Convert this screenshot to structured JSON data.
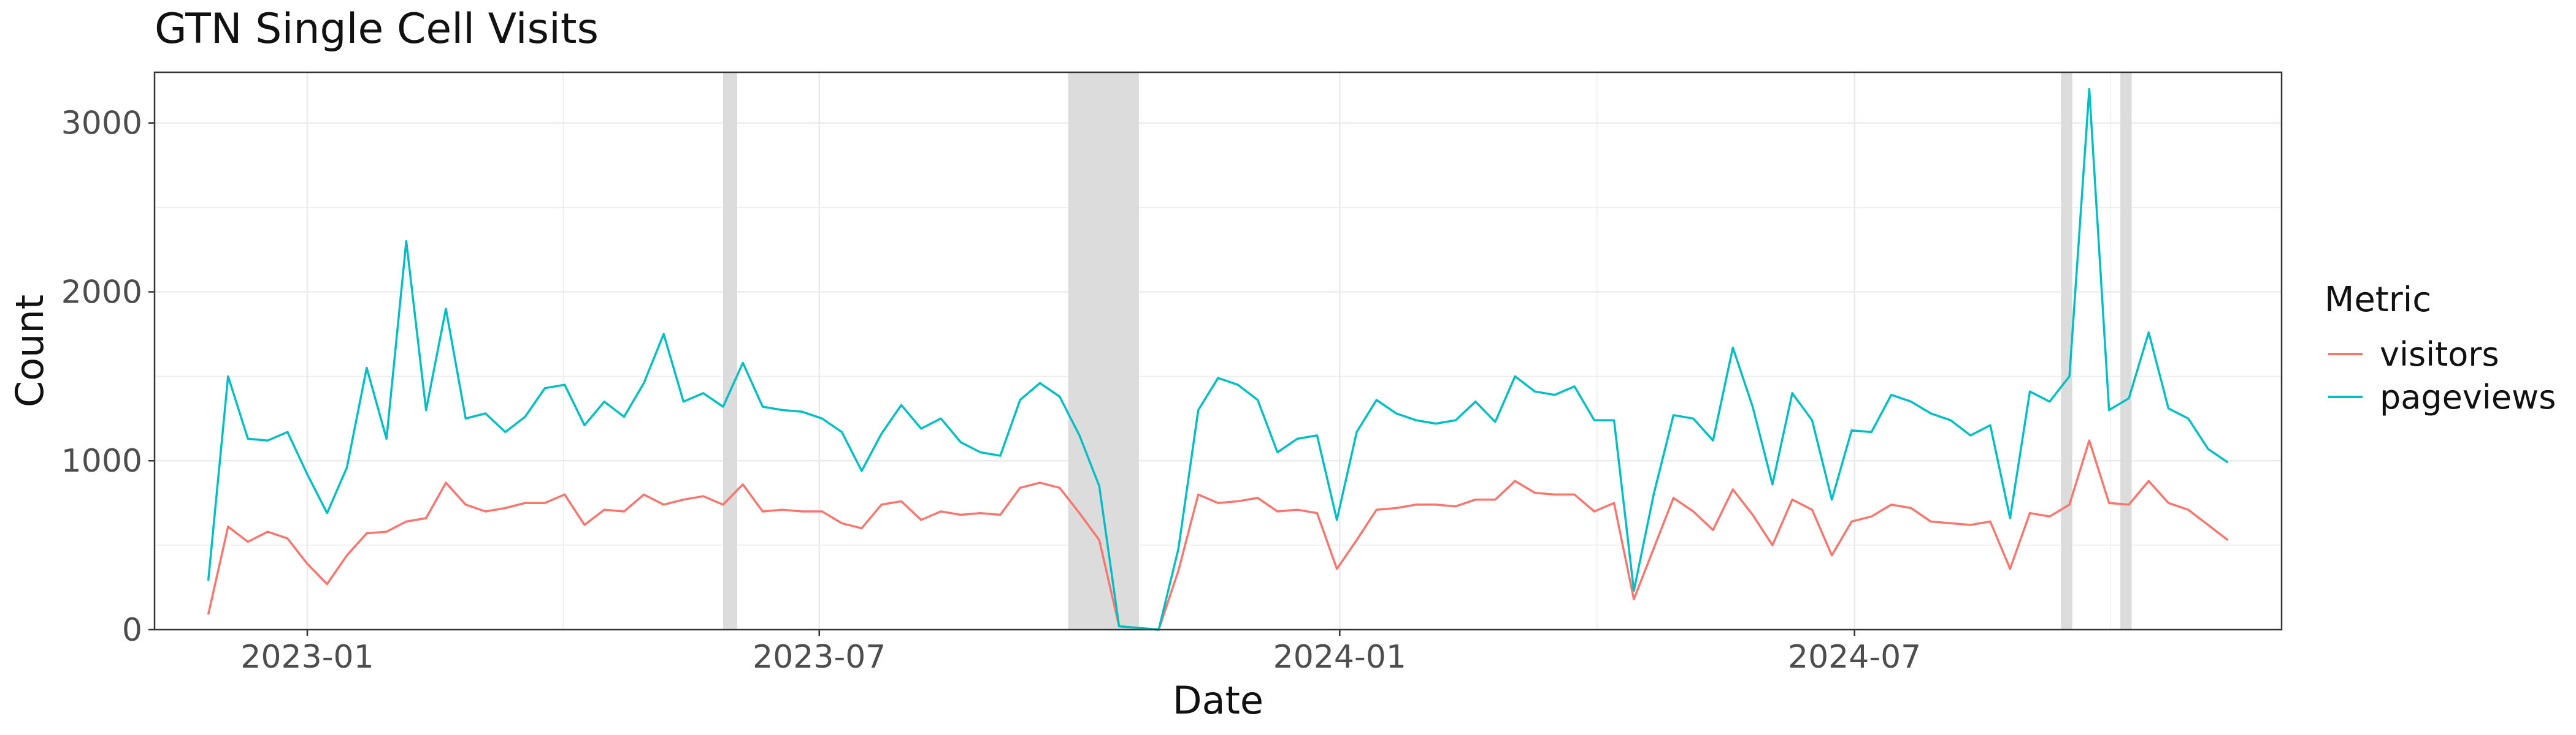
{
  "chart_data": {
    "type": "line",
    "title": "GTN Single Cell Visits",
    "xlabel": "Date",
    "ylabel": "Count",
    "ylim": [
      0,
      3300
    ],
    "xlim": [
      "2022-11-08",
      "2024-11-29"
    ],
    "grid": true,
    "legend_position": "right",
    "legend_title": "Metric",
    "x_ticks": [
      {
        "date": "2023-01-01",
        "label": "2023-01"
      },
      {
        "date": "2023-07-01",
        "label": "2023-07"
      },
      {
        "date": "2024-01-01",
        "label": "2024-01"
      },
      {
        "date": "2024-07-01",
        "label": "2024-07"
      }
    ],
    "y_ticks": [
      0,
      1000,
      2000,
      3000
    ],
    "shaded_ranges": [
      [
        "2023-05-28",
        "2023-06-02"
      ],
      [
        "2023-09-27",
        "2023-10-22"
      ],
      [
        "2024-09-12",
        "2024-09-16"
      ],
      [
        "2024-10-03",
        "2024-10-07"
      ]
    ],
    "x": [
      "2022-11-27",
      "2022-12-04",
      "2022-12-11",
      "2022-12-18",
      "2022-12-25",
      "2023-01-01",
      "2023-01-08",
      "2023-01-15",
      "2023-01-22",
      "2023-01-29",
      "2023-02-05",
      "2023-02-12",
      "2023-02-19",
      "2023-02-26",
      "2023-03-05",
      "2023-03-12",
      "2023-03-19",
      "2023-03-26",
      "2023-04-02",
      "2023-04-09",
      "2023-04-16",
      "2023-04-23",
      "2023-04-30",
      "2023-05-07",
      "2023-05-14",
      "2023-05-21",
      "2023-05-28",
      "2023-06-04",
      "2023-06-11",
      "2023-06-18",
      "2023-06-25",
      "2023-07-02",
      "2023-07-09",
      "2023-07-16",
      "2023-07-23",
      "2023-07-30",
      "2023-08-06",
      "2023-08-13",
      "2023-08-20",
      "2023-08-27",
      "2023-09-03",
      "2023-09-10",
      "2023-09-17",
      "2023-09-24",
      "2023-10-01",
      "2023-10-08",
      "2023-10-15",
      "2023-10-22",
      "2023-10-29",
      "2023-11-05",
      "2023-11-12",
      "2023-11-19",
      "2023-11-26",
      "2023-12-03",
      "2023-12-10",
      "2023-12-17",
      "2023-12-24",
      "2023-12-31",
      "2024-01-07",
      "2024-01-14",
      "2024-01-21",
      "2024-01-28",
      "2024-02-04",
      "2024-02-11",
      "2024-02-18",
      "2024-02-25",
      "2024-03-03",
      "2024-03-10",
      "2024-03-17",
      "2024-03-24",
      "2024-03-31",
      "2024-04-07",
      "2024-04-14",
      "2024-04-21",
      "2024-04-28",
      "2024-05-05",
      "2024-05-12",
      "2024-05-19",
      "2024-05-26",
      "2024-06-02",
      "2024-06-09",
      "2024-06-16",
      "2024-06-23",
      "2024-06-30",
      "2024-07-07",
      "2024-07-14",
      "2024-07-21",
      "2024-07-28",
      "2024-08-04",
      "2024-08-11",
      "2024-08-18",
      "2024-08-25",
      "2024-09-01",
      "2024-09-08",
      "2024-09-15",
      "2024-09-22",
      "2024-09-29",
      "2024-10-06",
      "2024-10-13",
      "2024-10-20",
      "2024-10-27",
      "2024-11-03",
      "2024-11-10"
    ],
    "series": [
      {
        "name": "visitors",
        "color": "#F8766D",
        "values": [
          90,
          610,
          520,
          580,
          540,
          390,
          270,
          440,
          570,
          580,
          640,
          660,
          870,
          740,
          700,
          720,
          750,
          750,
          800,
          620,
          710,
          700,
          800,
          740,
          770,
          790,
          740,
          860,
          700,
          710,
          700,
          700,
          630,
          600,
          740,
          760,
          650,
          700,
          680,
          690,
          680,
          840,
          870,
          840,
          690,
          530,
          20,
          10,
          0,
          350,
          800,
          750,
          760,
          780,
          700,
          710,
          690,
          360,
          530,
          710,
          720,
          740,
          740,
          730,
          770,
          770,
          880,
          810,
          800,
          800,
          700,
          750,
          180,
          480,
          780,
          700,
          590,
          830,
          680,
          500,
          770,
          710,
          440,
          640,
          670,
          740,
          720,
          640,
          630,
          620,
          640,
          360,
          690,
          670,
          740,
          1120,
          750,
          740,
          880,
          750,
          710,
          620,
          530
        ]
      },
      {
        "name": "pageviews",
        "color": "#00BFC4",
        "values": [
          290,
          1500,
          1130,
          1120,
          1170,
          920,
          690,
          960,
          1550,
          1130,
          2300,
          1300,
          1900,
          1250,
          1280,
          1170,
          1260,
          1430,
          1450,
          1210,
          1350,
          1260,
          1460,
          1750,
          1350,
          1400,
          1320,
          1580,
          1320,
          1300,
          1290,
          1250,
          1170,
          940,
          1160,
          1330,
          1190,
          1250,
          1110,
          1050,
          1030,
          1360,
          1460,
          1380,
          1150,
          850,
          20,
          10,
          0,
          480,
          1300,
          1490,
          1450,
          1360,
          1050,
          1130,
          1150,
          650,
          1170,
          1360,
          1280,
          1240,
          1220,
          1240,
          1350,
          1230,
          1500,
          1410,
          1390,
          1440,
          1240,
          1240,
          230,
          800,
          1270,
          1250,
          1120,
          1670,
          1320,
          860,
          1400,
          1240,
          770,
          1180,
          1170,
          1390,
          1350,
          1280,
          1240,
          1150,
          1210,
          660,
          1410,
          1350,
          1500,
          3200,
          1300,
          1370,
          1760,
          1310,
          1250,
          1070,
          990
        ]
      }
    ]
  }
}
